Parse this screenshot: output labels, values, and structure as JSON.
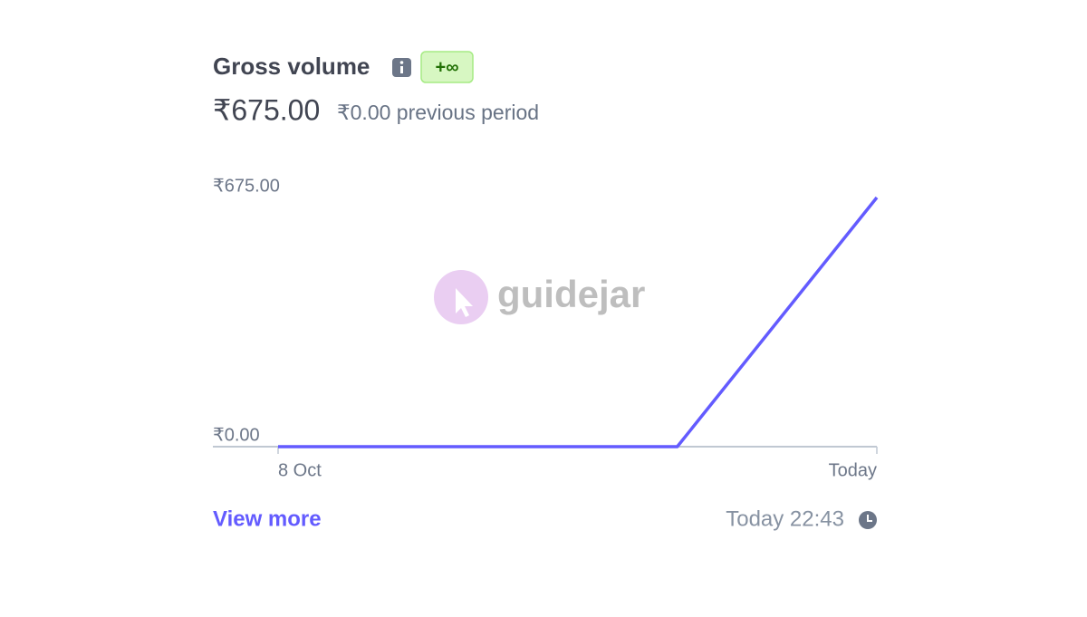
{
  "chart_data": {
    "type": "line",
    "title": "Gross volume",
    "badge": "+∞",
    "total": "₹675.00",
    "comparison": "₹0.00 previous period",
    "categories": [
      "8 Oct",
      null,
      null,
      "Today"
    ],
    "values": [
      0,
      0,
      0,
      675
    ],
    "color": "#635bff",
    "ylim": [
      0,
      675
    ],
    "yticks": [
      {
        "value": 0,
        "label": "₹0.00"
      },
      {
        "value": 675,
        "label": "₹675.00"
      }
    ],
    "link": "View more",
    "timestamp": "Today 22:43",
    "watermark": "guidejar"
  }
}
